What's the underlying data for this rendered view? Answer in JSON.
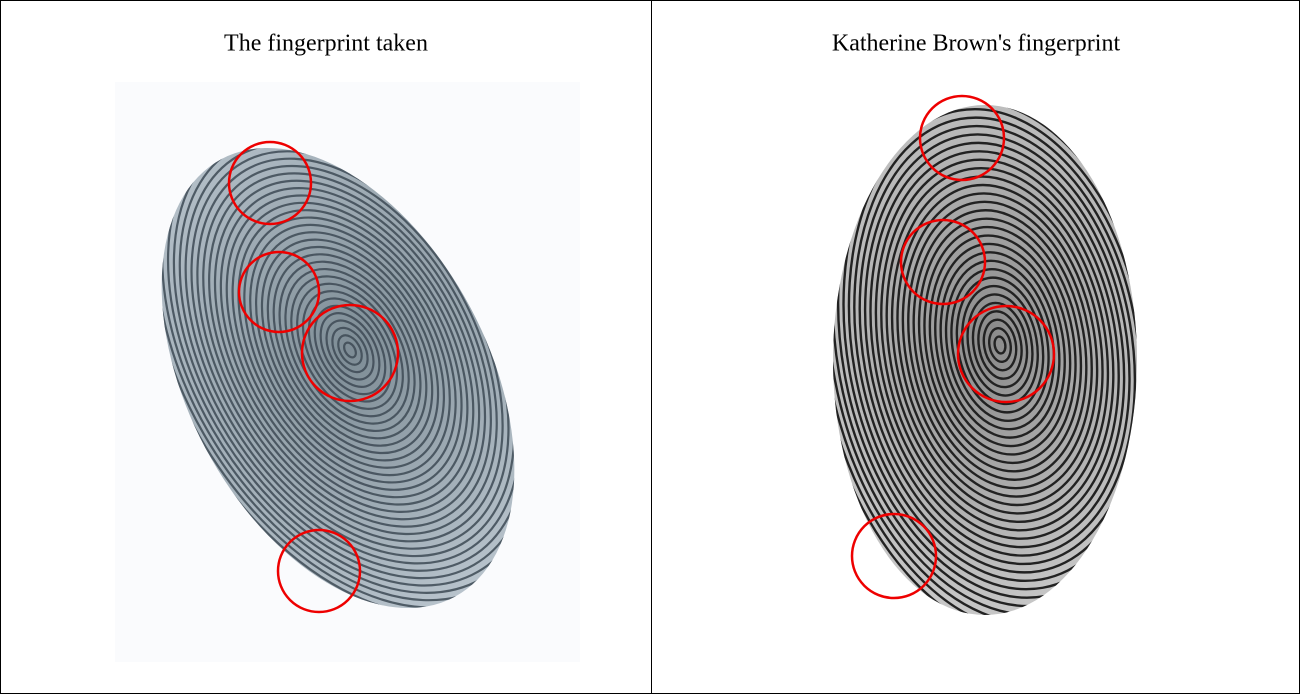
{
  "table": {
    "rows": [
      [
        "The fingerprint taken",
        "Katherine Brown's fingerprint"
      ]
    ]
  }
}
